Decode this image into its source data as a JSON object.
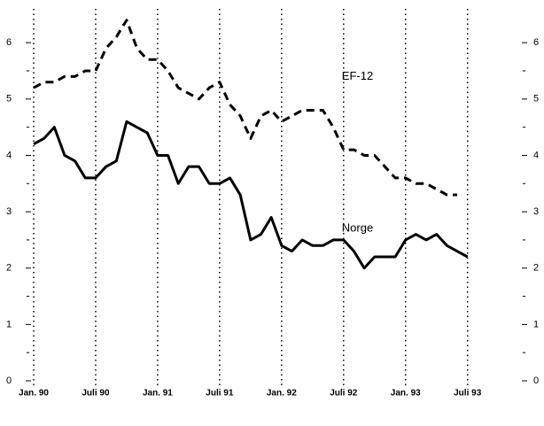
{
  "chart_data": {
    "type": "line",
    "x": [
      0,
      1,
      2,
      3,
      4,
      5,
      6,
      7,
      8,
      9,
      10,
      11,
      12,
      13,
      14,
      15,
      16,
      17,
      18,
      19,
      20,
      21,
      22,
      23,
      24,
      25,
      26,
      27,
      28,
      29,
      30,
      31,
      32,
      33,
      34,
      35,
      36,
      37,
      38,
      39,
      40,
      41,
      42
    ],
    "series": [
      {
        "name": "Norge",
        "color": "#000000",
        "dash": "solid",
        "values": [
          4.2,
          4.3,
          4.5,
          4.0,
          3.9,
          3.6,
          3.6,
          3.8,
          3.9,
          4.6,
          4.5,
          4.4,
          4.0,
          4.0,
          3.5,
          3.8,
          3.8,
          3.5,
          3.5,
          3.6,
          3.3,
          2.5,
          2.6,
          2.9,
          2.4,
          2.3,
          2.5,
          2.4,
          2.4,
          2.5,
          2.5,
          2.3,
          2.0,
          2.2,
          2.2,
          2.2,
          2.5,
          2.6,
          2.5,
          2.6,
          2.4,
          2.3,
          2.2
        ]
      },
      {
        "name": "EF-12",
        "color": "#000000",
        "dash": "dashed",
        "values": [
          5.2,
          5.3,
          5.3,
          5.4,
          5.4,
          5.5,
          5.5,
          5.9,
          6.1,
          6.4,
          5.9,
          5.7,
          5.7,
          5.5,
          5.2,
          5.1,
          5.0,
          5.2,
          5.3,
          4.9,
          4.7,
          4.3,
          4.7,
          4.8,
          4.6,
          4.7,
          4.8,
          4.8,
          4.8,
          4.5,
          4.1,
          4.1,
          4.0,
          4.0,
          3.8,
          3.6,
          3.6,
          3.5,
          3.5,
          3.4,
          3.3,
          3.3,
          null
        ]
      }
    ],
    "annotations": [
      {
        "text": "EF-12",
        "x": 30,
        "y": 5.4
      },
      {
        "text": "Norge",
        "x": 30,
        "y": 2.7
      }
    ],
    "xlim": [
      0,
      47.6
    ],
    "xticks": [
      {
        "value": 0,
        "label": "Jan. 90"
      },
      {
        "value": 6,
        "label": "Juli 90"
      },
      {
        "value": 12,
        "label": "Jan. 91"
      },
      {
        "value": 18,
        "label": "Juli 91"
      },
      {
        "value": 24,
        "label": "Jan. 92"
      },
      {
        "value": 30,
        "label": "Juli 92"
      },
      {
        "value": 36,
        "label": "Jan. 93"
      },
      {
        "value": 42,
        "label": "Juli 93"
      }
    ],
    "ylim": [
      0,
      6.6
    ],
    "yticks": [
      0,
      1,
      2,
      3,
      4,
      5,
      6
    ],
    "minor_yticks": [
      0.5,
      1.5,
      2.5,
      3.5,
      4.5,
      5.5
    ],
    "y2lim": [
      0,
      6.6
    ],
    "y2ticks": [
      0,
      1,
      2,
      3,
      4,
      5,
      6
    ],
    "grid": true
  }
}
